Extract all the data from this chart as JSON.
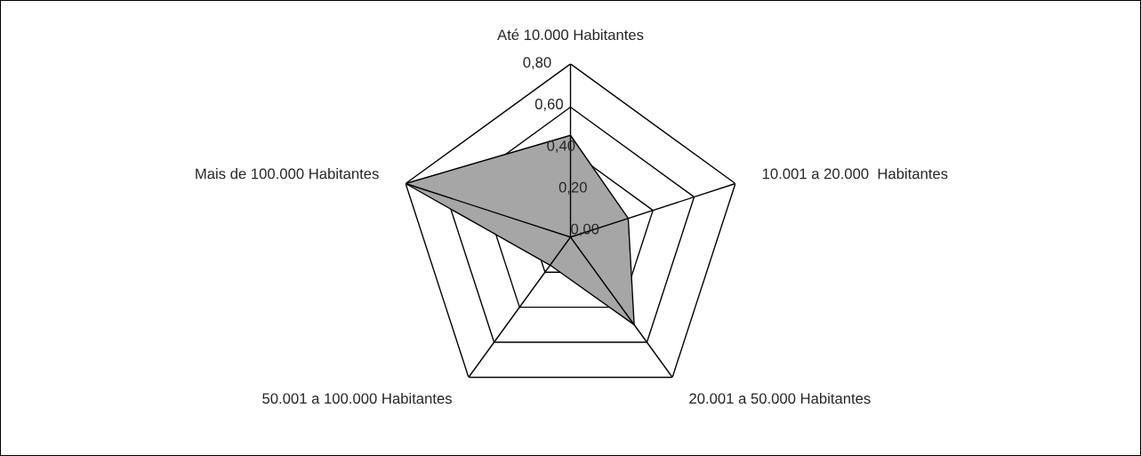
{
  "chart_data": {
    "type": "radar",
    "categories": [
      "Até 10.000 Habitantes",
      "10.001 a 20.000  Habitantes",
      "20.001 a 50.000 Habitantes",
      "50.001 a 100.000 Habitantes",
      "Mais de 100.000 Habitantes"
    ],
    "series": [
      {
        "color": "#a6a6a6",
        "values": [
          0.47,
          0.28,
          0.5,
          0.16,
          0.8
        ]
      }
    ],
    "ylim": [
      0,
      0.8
    ],
    "yticks": [
      {
        "value": 0,
        "label": "0,00"
      },
      {
        "value": 0.2,
        "label": "0,20"
      },
      {
        "value": 0.4,
        "label": "0,40"
      },
      {
        "value": 0.6,
        "label": "0,60"
      },
      {
        "value": 0.8,
        "label": "0,80"
      }
    ],
    "grid": true
  }
}
